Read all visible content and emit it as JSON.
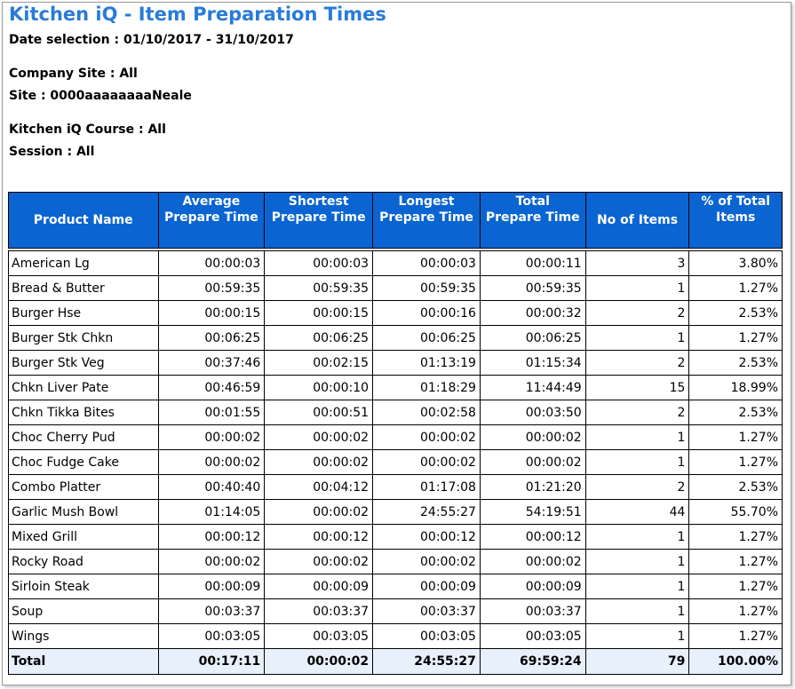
{
  "report": {
    "title": "Kitchen iQ - Item Preparation Times",
    "date_selection": "Date selection : 01/10/2017 - 31/10/2017",
    "company_site": "Company Site : All",
    "site": "Site : 0000aaaaaaaaNeale",
    "course": "Kitchen iQ Course : All",
    "session": "Session : All"
  },
  "table": {
    "headers": [
      [
        "Product Name"
      ],
      [
        "Average",
        "Prepare Time"
      ],
      [
        "Shortest",
        "Prepare Time"
      ],
      [
        "Longest",
        "Prepare Time"
      ],
      [
        "Total",
        "Prepare Time"
      ],
      [
        "No of Items"
      ],
      [
        "% of Total",
        "Items"
      ]
    ],
    "rows": [
      [
        "American Lg",
        "00:00:03",
        "00:00:03",
        "00:00:03",
        "00:00:11",
        "3",
        "3.80%"
      ],
      [
        "Bread & Butter",
        "00:59:35",
        "00:59:35",
        "00:59:35",
        "00:59:35",
        "1",
        "1.27%"
      ],
      [
        "Burger Hse",
        "00:00:15",
        "00:00:15",
        "00:00:16",
        "00:00:32",
        "2",
        "2.53%"
      ],
      [
        "Burger Stk Chkn",
        "00:06:25",
        "00:06:25",
        "00:06:25",
        "00:06:25",
        "1",
        "1.27%"
      ],
      [
        "Burger Stk Veg",
        "00:37:46",
        "00:02:15",
        "01:13:19",
        "01:15:34",
        "2",
        "2.53%"
      ],
      [
        "Chkn Liver Pate",
        "00:46:59",
        "00:00:10",
        "01:18:29",
        "11:44:49",
        "15",
        "18.99%"
      ],
      [
        "Chkn Tikka Bites",
        "00:01:55",
        "00:00:51",
        "00:02:58",
        "00:03:50",
        "2",
        "2.53%"
      ],
      [
        "Choc Cherry Pud",
        "00:00:02",
        "00:00:02",
        "00:00:02",
        "00:00:02",
        "1",
        "1.27%"
      ],
      [
        "Choc Fudge Cake",
        "00:00:02",
        "00:00:02",
        "00:00:02",
        "00:00:02",
        "1",
        "1.27%"
      ],
      [
        "Combo Platter",
        "00:40:40",
        "00:04:12",
        "01:17:08",
        "01:21:20",
        "2",
        "2.53%"
      ],
      [
        "Garlic Mush Bowl",
        "01:14:05",
        "00:00:02",
        "24:55:27",
        "54:19:51",
        "44",
        "55.70%"
      ],
      [
        "Mixed Grill",
        "00:00:12",
        "00:00:12",
        "00:00:12",
        "00:00:12",
        "1",
        "1.27%"
      ],
      [
        "Rocky Road",
        "00:00:02",
        "00:00:02",
        "00:00:02",
        "00:00:02",
        "1",
        "1.27%"
      ],
      [
        "Sirloin Steak",
        "00:00:09",
        "00:00:09",
        "00:00:09",
        "00:00:09",
        "1",
        "1.27%"
      ],
      [
        "Soup",
        "00:03:37",
        "00:03:37",
        "00:03:37",
        "00:03:37",
        "1",
        "1.27%"
      ],
      [
        "Wings",
        "00:03:05",
        "00:03:05",
        "00:03:05",
        "00:03:05",
        "1",
        "1.27%"
      ]
    ],
    "total": [
      "Total",
      "00:17:11",
      "00:00:02",
      "24:55:27",
      "69:59:24",
      "79",
      "100.00%"
    ]
  }
}
